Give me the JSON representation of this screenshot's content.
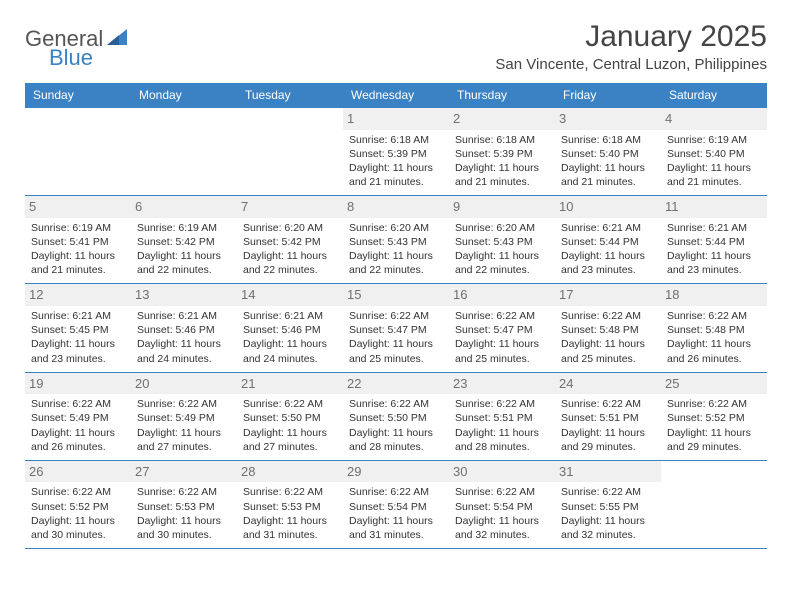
{
  "brand": {
    "word1": "General",
    "word2": "Blue",
    "logo_color": "#3b82c4",
    "text_color": "#555555"
  },
  "header": {
    "title": "January 2025",
    "location": "San Vincente, Central Luzon, Philippines"
  },
  "colors": {
    "header_bg": "#3b82c4",
    "header_text": "#ffffff",
    "daynum_bg": "#f0f0f0",
    "daynum_text": "#707070",
    "body_text": "#333333",
    "border": "#3b82c4"
  },
  "weekdays": [
    "Sunday",
    "Monday",
    "Tuesday",
    "Wednesday",
    "Thursday",
    "Friday",
    "Saturday"
  ],
  "weeks": [
    [
      {
        "day": "",
        "lines": []
      },
      {
        "day": "",
        "lines": []
      },
      {
        "day": "",
        "lines": []
      },
      {
        "day": "1",
        "lines": [
          "Sunrise: 6:18 AM",
          "Sunset: 5:39 PM",
          "Daylight: 11 hours and 21 minutes."
        ]
      },
      {
        "day": "2",
        "lines": [
          "Sunrise: 6:18 AM",
          "Sunset: 5:39 PM",
          "Daylight: 11 hours and 21 minutes."
        ]
      },
      {
        "day": "3",
        "lines": [
          "Sunrise: 6:18 AM",
          "Sunset: 5:40 PM",
          "Daylight: 11 hours and 21 minutes."
        ]
      },
      {
        "day": "4",
        "lines": [
          "Sunrise: 6:19 AM",
          "Sunset: 5:40 PM",
          "Daylight: 11 hours and 21 minutes."
        ]
      }
    ],
    [
      {
        "day": "5",
        "lines": [
          "Sunrise: 6:19 AM",
          "Sunset: 5:41 PM",
          "Daylight: 11 hours and 21 minutes."
        ]
      },
      {
        "day": "6",
        "lines": [
          "Sunrise: 6:19 AM",
          "Sunset: 5:42 PM",
          "Daylight: 11 hours and 22 minutes."
        ]
      },
      {
        "day": "7",
        "lines": [
          "Sunrise: 6:20 AM",
          "Sunset: 5:42 PM",
          "Daylight: 11 hours and 22 minutes."
        ]
      },
      {
        "day": "8",
        "lines": [
          "Sunrise: 6:20 AM",
          "Sunset: 5:43 PM",
          "Daylight: 11 hours and 22 minutes."
        ]
      },
      {
        "day": "9",
        "lines": [
          "Sunrise: 6:20 AM",
          "Sunset: 5:43 PM",
          "Daylight: 11 hours and 22 minutes."
        ]
      },
      {
        "day": "10",
        "lines": [
          "Sunrise: 6:21 AM",
          "Sunset: 5:44 PM",
          "Daylight: 11 hours and 23 minutes."
        ]
      },
      {
        "day": "11",
        "lines": [
          "Sunrise: 6:21 AM",
          "Sunset: 5:44 PM",
          "Daylight: 11 hours and 23 minutes."
        ]
      }
    ],
    [
      {
        "day": "12",
        "lines": [
          "Sunrise: 6:21 AM",
          "Sunset: 5:45 PM",
          "Daylight: 11 hours and 23 minutes."
        ]
      },
      {
        "day": "13",
        "lines": [
          "Sunrise: 6:21 AM",
          "Sunset: 5:46 PM",
          "Daylight: 11 hours and 24 minutes."
        ]
      },
      {
        "day": "14",
        "lines": [
          "Sunrise: 6:21 AM",
          "Sunset: 5:46 PM",
          "Daylight: 11 hours and 24 minutes."
        ]
      },
      {
        "day": "15",
        "lines": [
          "Sunrise: 6:22 AM",
          "Sunset: 5:47 PM",
          "Daylight: 11 hours and 25 minutes."
        ]
      },
      {
        "day": "16",
        "lines": [
          "Sunrise: 6:22 AM",
          "Sunset: 5:47 PM",
          "Daylight: 11 hours and 25 minutes."
        ]
      },
      {
        "day": "17",
        "lines": [
          "Sunrise: 6:22 AM",
          "Sunset: 5:48 PM",
          "Daylight: 11 hours and 25 minutes."
        ]
      },
      {
        "day": "18",
        "lines": [
          "Sunrise: 6:22 AM",
          "Sunset: 5:48 PM",
          "Daylight: 11 hours and 26 minutes."
        ]
      }
    ],
    [
      {
        "day": "19",
        "lines": [
          "Sunrise: 6:22 AM",
          "Sunset: 5:49 PM",
          "Daylight: 11 hours and 26 minutes."
        ]
      },
      {
        "day": "20",
        "lines": [
          "Sunrise: 6:22 AM",
          "Sunset: 5:49 PM",
          "Daylight: 11 hours and 27 minutes."
        ]
      },
      {
        "day": "21",
        "lines": [
          "Sunrise: 6:22 AM",
          "Sunset: 5:50 PM",
          "Daylight: 11 hours and 27 minutes."
        ]
      },
      {
        "day": "22",
        "lines": [
          "Sunrise: 6:22 AM",
          "Sunset: 5:50 PM",
          "Daylight: 11 hours and 28 minutes."
        ]
      },
      {
        "day": "23",
        "lines": [
          "Sunrise: 6:22 AM",
          "Sunset: 5:51 PM",
          "Daylight: 11 hours and 28 minutes."
        ]
      },
      {
        "day": "24",
        "lines": [
          "Sunrise: 6:22 AM",
          "Sunset: 5:51 PM",
          "Daylight: 11 hours and 29 minutes."
        ]
      },
      {
        "day": "25",
        "lines": [
          "Sunrise: 6:22 AM",
          "Sunset: 5:52 PM",
          "Daylight: 11 hours and 29 minutes."
        ]
      }
    ],
    [
      {
        "day": "26",
        "lines": [
          "Sunrise: 6:22 AM",
          "Sunset: 5:52 PM",
          "Daylight: 11 hours and 30 minutes."
        ]
      },
      {
        "day": "27",
        "lines": [
          "Sunrise: 6:22 AM",
          "Sunset: 5:53 PM",
          "Daylight: 11 hours and 30 minutes."
        ]
      },
      {
        "day": "28",
        "lines": [
          "Sunrise: 6:22 AM",
          "Sunset: 5:53 PM",
          "Daylight: 11 hours and 31 minutes."
        ]
      },
      {
        "day": "29",
        "lines": [
          "Sunrise: 6:22 AM",
          "Sunset: 5:54 PM",
          "Daylight: 11 hours and 31 minutes."
        ]
      },
      {
        "day": "30",
        "lines": [
          "Sunrise: 6:22 AM",
          "Sunset: 5:54 PM",
          "Daylight: 11 hours and 32 minutes."
        ]
      },
      {
        "day": "31",
        "lines": [
          "Sunrise: 6:22 AM",
          "Sunset: 5:55 PM",
          "Daylight: 11 hours and 32 minutes."
        ]
      },
      {
        "day": "",
        "lines": []
      }
    ]
  ]
}
